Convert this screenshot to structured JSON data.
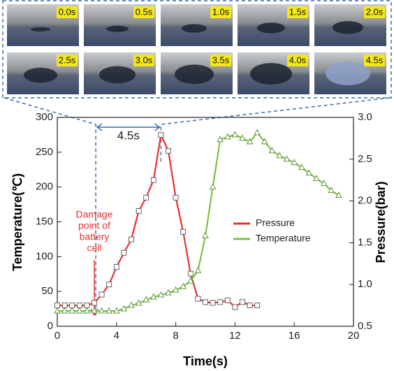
{
  "chart_data": {
    "type": "line",
    "image_labels": [
      "0.0s",
      "0.5s",
      "1.0s",
      "1.5s",
      "2.0s",
      "2.5s",
      "3.0s",
      "3.5s",
      "4.0s",
      "4.5s"
    ],
    "annotations": {
      "interval": "4.5s",
      "damage": [
        "Damage",
        "point of",
        "battery",
        "cell"
      ]
    },
    "x_label": "Time(s)",
    "y_label": "Temperature(℃)",
    "y2_label": "Pressure(bar)",
    "xlim": [
      0,
      20
    ],
    "xticks": [
      0,
      4,
      8,
      12,
      16,
      20
    ],
    "ylim": [
      0,
      300
    ],
    "yticks": [
      0,
      50,
      100,
      150,
      200,
      250,
      300
    ],
    "y2lim": [
      0.5,
      3
    ],
    "y2ticks": [
      0.5,
      {
        "value": 1,
        "label": "1.0"
      },
      1.5,
      {
        "value": 2,
        "label": "2.0"
      },
      2.5,
      {
        "value": 3,
        "label": "3.0"
      }
    ],
    "legend": "center-right",
    "series": [
      {
        "name": "Pressure",
        "color": "#e8322e",
        "axis": "y2",
        "marker": "square",
        "x": [
          0,
          0.5,
          1,
          1.5,
          2,
          2.5,
          3,
          3.5,
          4,
          4.5,
          5,
          5.5,
          6,
          6.5,
          7,
          7.5,
          8,
          8.5,
          9,
          9.5,
          10,
          10.5,
          11,
          11.5,
          12,
          12.5,
          13,
          13.5
        ],
        "values": [
          0.75,
          0.75,
          0.75,
          0.75,
          0.75,
          0.78,
          0.88,
          1.0,
          1.21,
          1.38,
          1.54,
          1.88,
          2.04,
          2.25,
          2.79,
          2.6,
          2.04,
          1.63,
          1.13,
          0.83,
          0.79,
          0.78,
          0.79,
          0.81,
          0.73,
          0.79,
          0.75,
          0.75
        ]
      },
      {
        "name": "Temperature",
        "color": "#7cc242",
        "marker": "triangle",
        "x": [
          0,
          0.5,
          1,
          1.5,
          2,
          2.5,
          3,
          3.5,
          4,
          4.5,
          5,
          5.5,
          6,
          6.5,
          7,
          7.5,
          8,
          8.5,
          9,
          9.5,
          10,
          10.5,
          11,
          11.5,
          12,
          12.5,
          13,
          13.5,
          14,
          14.5,
          15,
          15.5,
          16,
          16.5,
          17,
          17.5,
          18,
          18.5,
          19
        ],
        "values": [
          22,
          22,
          22,
          22,
          22,
          22,
          22,
          22,
          22,
          25,
          30,
          33,
          38,
          42,
          45,
          48,
          52,
          57,
          65,
          80,
          130,
          200,
          268,
          272,
          275,
          270,
          265,
          278,
          265,
          252,
          245,
          240,
          235,
          228,
          220,
          212,
          205,
          195,
          188
        ]
      }
    ]
  }
}
